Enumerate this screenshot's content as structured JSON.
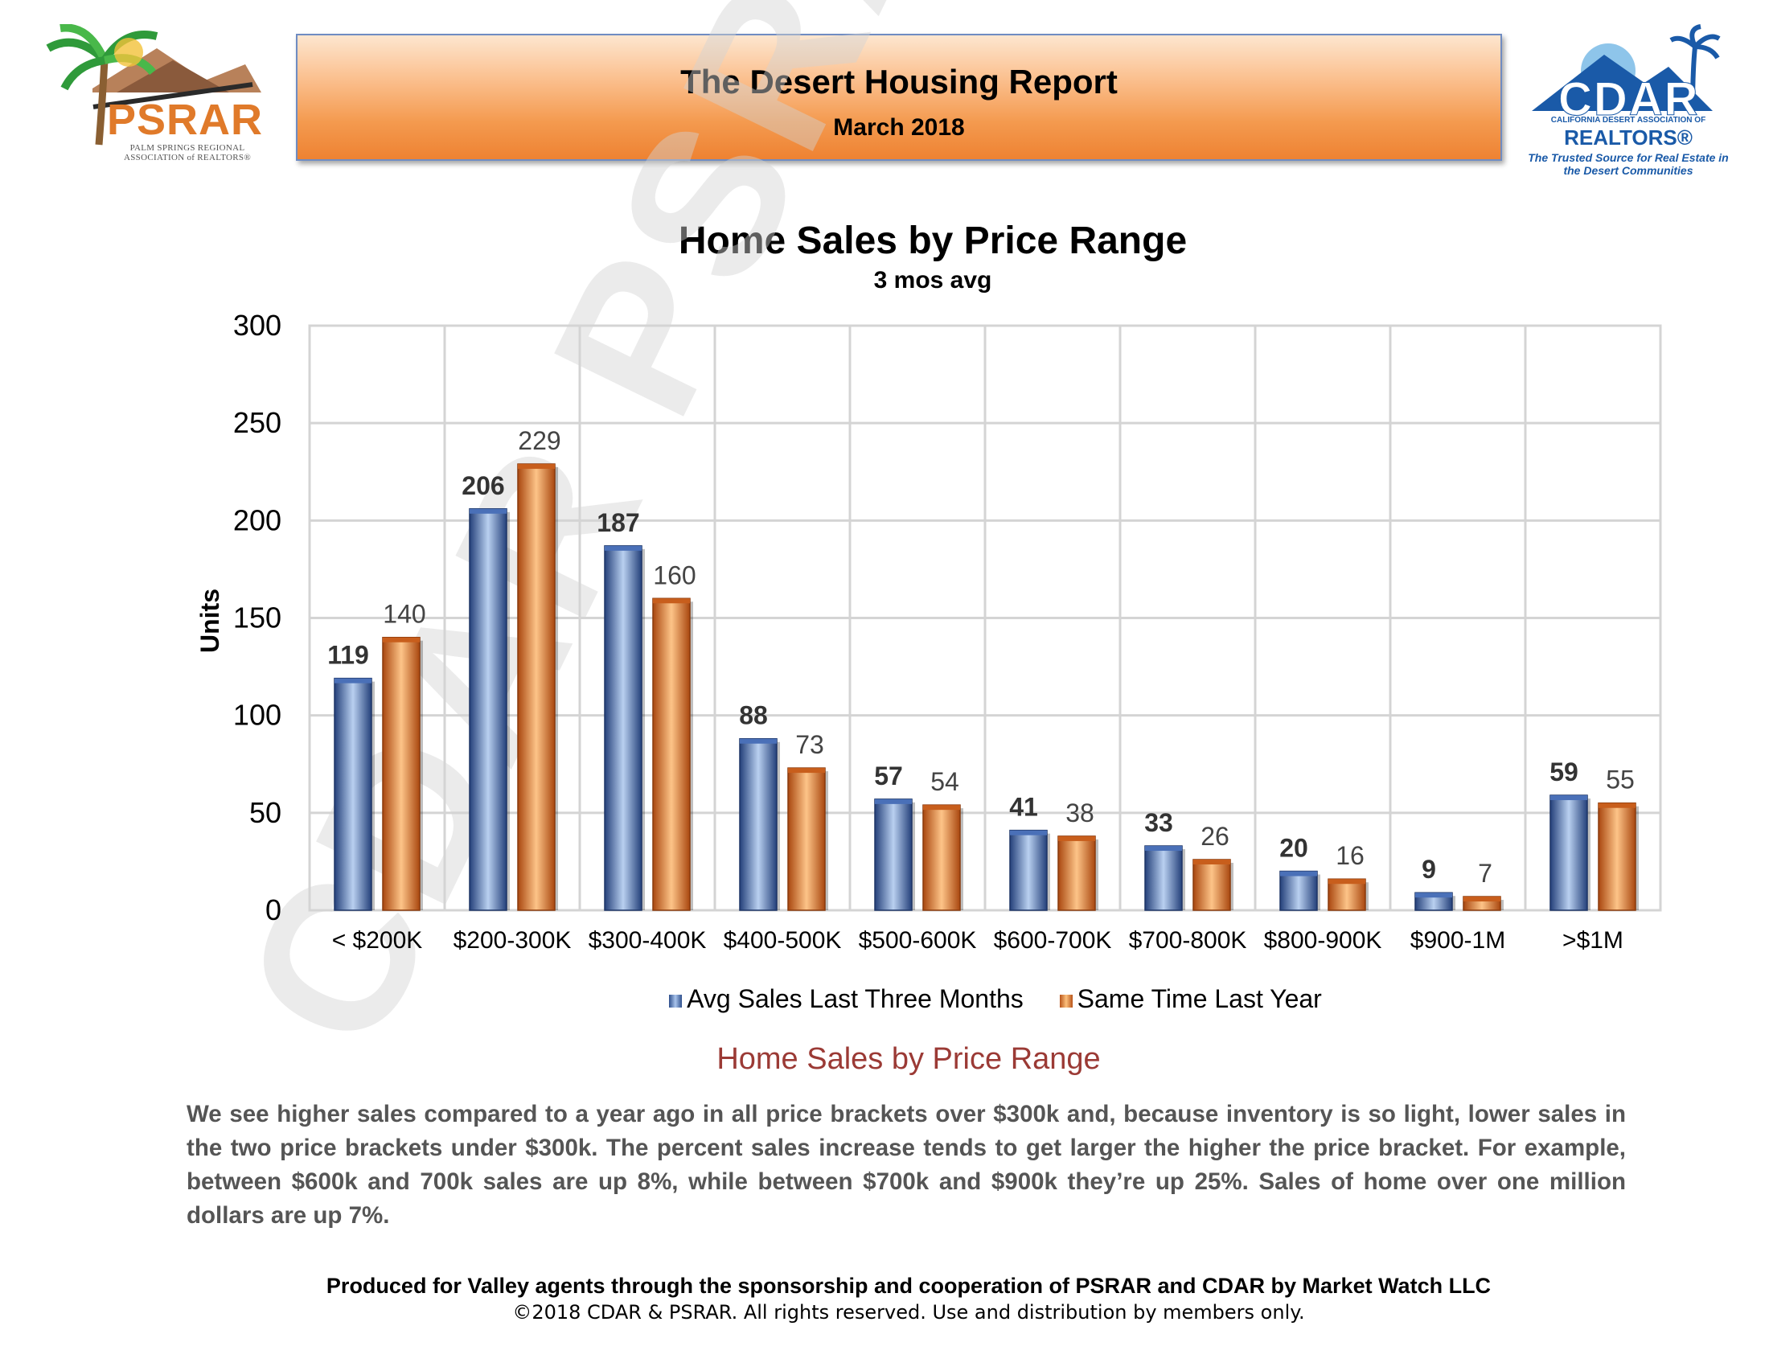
{
  "header": {
    "title": "The Desert Housing Report",
    "date": "March 2018",
    "left_logo_text": "PSRAR",
    "left_logo_sub": "PALM SPRINGS REGIONAL ASSOCIATION of REALTORS®",
    "right_logo_text": "CDAR",
    "right_logo_line1": "CALIFORNIA DESERT ASSOCIATION OF",
    "right_logo_line2": "REALTORS®",
    "right_logo_tagline": "The Trusted Source for Real Estate in the Desert Communities"
  },
  "watermark": "CDAR PSRAR",
  "chart_data": {
    "type": "bar",
    "title": "Home Sales by Price Range",
    "subtitle": "3 mos avg",
    "xlabel": "",
    "ylabel": "Units",
    "ylim": [
      0,
      300
    ],
    "yticks": [
      0,
      50,
      100,
      150,
      200,
      250,
      300
    ],
    "grid": true,
    "legend_position": "bottom",
    "categories": [
      "< $200K",
      "$200-300K",
      "$300-400K",
      "$400-500K",
      "$500-600K",
      "$600-700K",
      "$700-800K",
      "$800-900K",
      "$900-1M",
      ">$1M"
    ],
    "series": [
      {
        "name": "Avg Sales Last Three Months",
        "color": "#3a62a8",
        "values": [
          119,
          206,
          187,
          88,
          57,
          41,
          33,
          20,
          9,
          59
        ]
      },
      {
        "name": "Same Time Last Year",
        "color": "#e7812e",
        "values": [
          140,
          229,
          160,
          73,
          54,
          38,
          26,
          16,
          7,
          55
        ]
      }
    ]
  },
  "section": {
    "heading": "Home Sales by Price Range",
    "body": "We see higher sales compared to a year ago in all price brackets over $300k and, because inventory is so light, lower sales in the two price brackets under $300k. The percent sales increase tends to get larger the higher the price bracket. For example, between $600k and 700k sales are up 8%, while between $700k and $900k they’re up 25%. Sales of home over one million dollars are up 7%."
  },
  "footer": {
    "line1": "Produced for Valley agents through the sponsorship and cooperation of PSRAR and CDAR by Market Watch LLC",
    "line2": "©2018 CDAR & PSRAR.  All rights reserved.  Use and distribution by members only."
  }
}
